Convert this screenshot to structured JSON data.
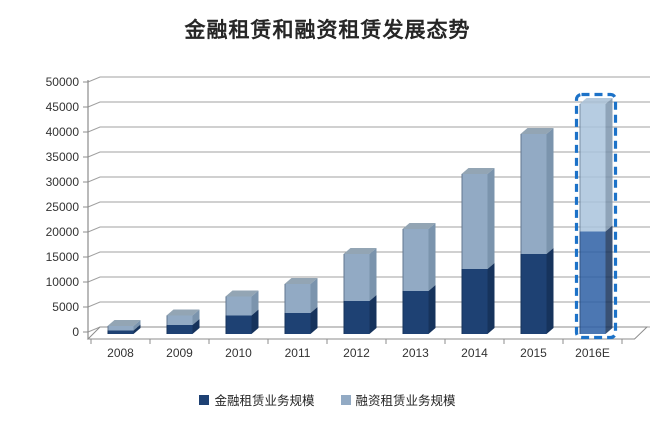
{
  "title": "金融租赁和融资租赁发展态势",
  "chart_data": {
    "type": "bar",
    "stacked": true,
    "effect": "3d",
    "title": "金融租赁和融资租赁发展态势",
    "categories": [
      "2008",
      "2009",
      "2010",
      "2011",
      "2012",
      "2013",
      "2014",
      "2015",
      "2016E"
    ],
    "series": [
      {
        "name": "金融租赁业务规模",
        "color": "#1e4173",
        "side_color": "#16335c",
        "values": [
          700,
          1800,
          3700,
          4200,
          6600,
          8600,
          13000,
          16000,
          20500
        ]
      },
      {
        "name": "融资租赁业务规模",
        "color": "#92aac4",
        "side_color": "#7b94ad",
        "cap_color": "#93a5b4",
        "values": [
          900,
          1900,
          3800,
          5800,
          9400,
          12400,
          19000,
          24000,
          25500
        ]
      }
    ],
    "xlabel": "",
    "ylabel": "",
    "ylim": [
      0,
      50000
    ],
    "ytick_step": 5000,
    "ytick_labels": [
      "0",
      "5000",
      "10000",
      "15000",
      "20000",
      "25000",
      "30000",
      "35000",
      "40000",
      "45000",
      "50000"
    ],
    "grid": true,
    "legend_position": "bottom",
    "highlight": {
      "category": "2016E",
      "style": "dashed-outline",
      "border_color": "#1c72c8",
      "fill_opacity": 0.85
    }
  },
  "style": {
    "grid_color": "#a0a0a0",
    "axis_color": "#8c8c8c",
    "label_color": "#333333",
    "background": "#ffffff"
  }
}
